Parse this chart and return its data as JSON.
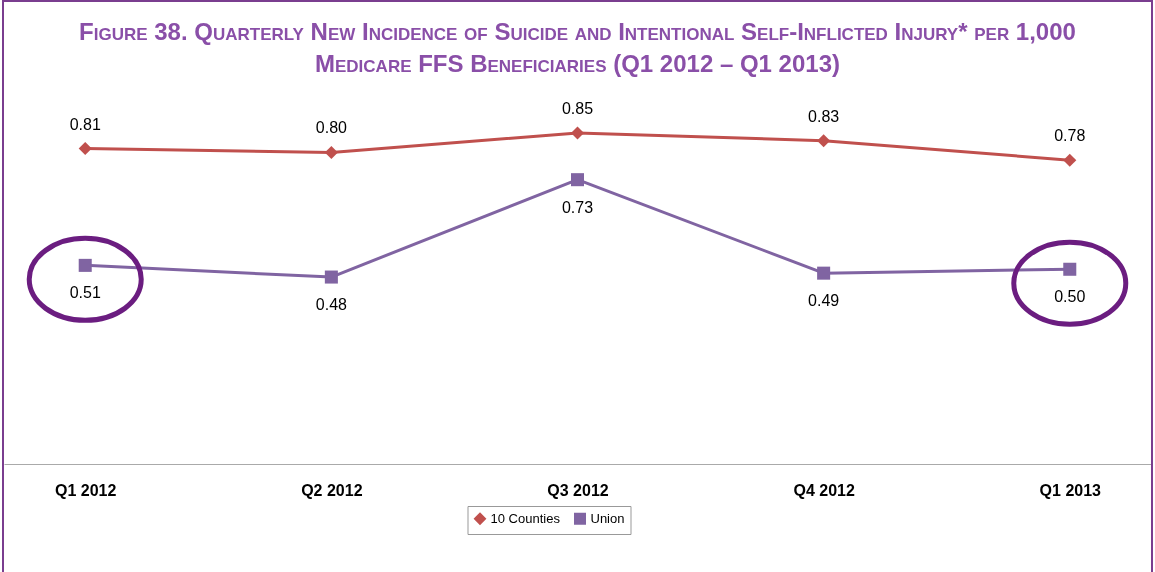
{
  "chart_data": {
    "type": "line",
    "title": "Figure 38. Quarterly New Incidence of Suicide and Intentional Self-Inflicted Injury* per 1,000 Medicare FFS Beneficiaries (Q1 2012 – Q1 2013)",
    "categories": [
      "Q1 2012",
      "Q2 2012",
      "Q3 2012",
      "Q4 2012",
      "Q1 2013"
    ],
    "series": [
      {
        "name": "10 Counties",
        "color": "#c0504d",
        "marker": "diamond",
        "values": [
          0.81,
          0.8,
          0.85,
          0.83,
          0.78
        ],
        "value_labels": [
          "0.81",
          "0.80",
          "0.85",
          "0.83",
          "0.78"
        ]
      },
      {
        "name": "Union",
        "color": "#8064a2",
        "marker": "square",
        "values": [
          0.51,
          0.48,
          0.73,
          0.49,
          0.5
        ],
        "value_labels": [
          "0.51",
          "0.48",
          "0.73",
          "0.49",
          "0.50"
        ]
      }
    ],
    "ylim": [
      0,
      0.95
    ],
    "grid": false,
    "legend": "bottom",
    "line_style": "solid"
  }
}
